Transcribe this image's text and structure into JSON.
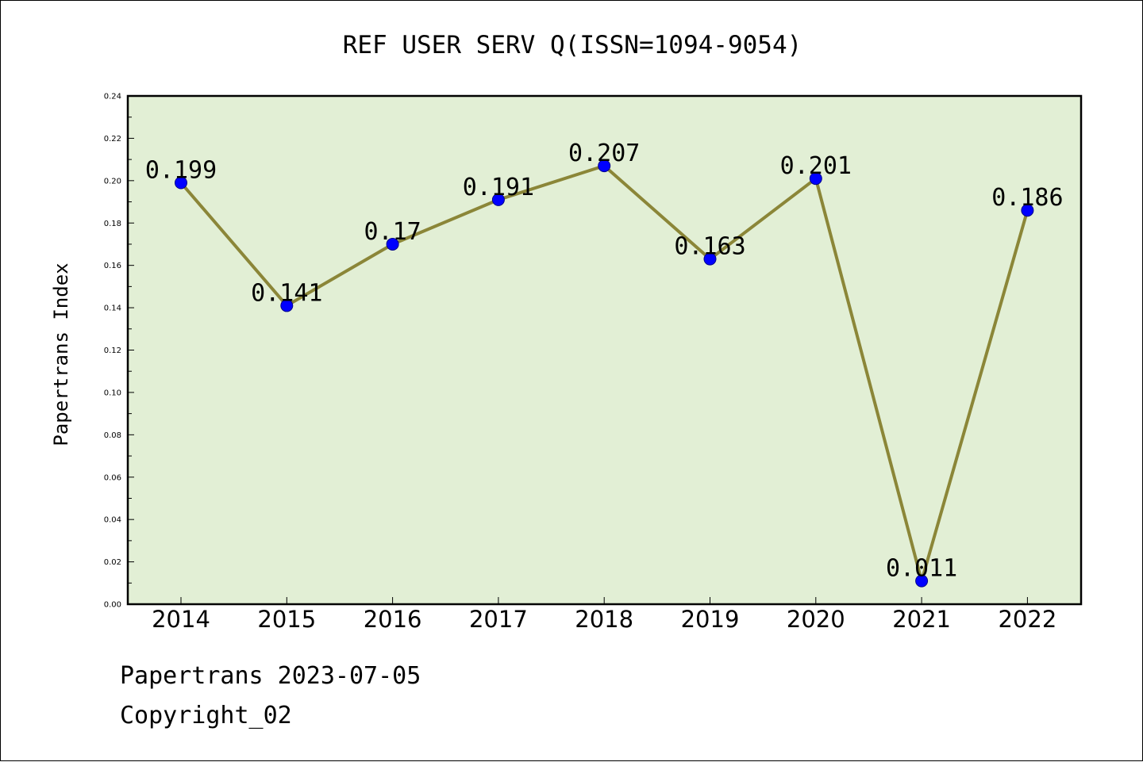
{
  "chart_data": {
    "type": "line",
    "title": "REF USER SERV Q(ISSN=1094-9054)",
    "xlabel": "",
    "ylabel": "Papertrans Index",
    "categories": [
      "2014",
      "2015",
      "2016",
      "2017",
      "2018",
      "2019",
      "2020",
      "2021",
      "2022"
    ],
    "series": [
      {
        "values": [
          0.199,
          0.141,
          0.17,
          0.191,
          0.207,
          0.163,
          0.201,
          0.011,
          0.186
        ],
        "labels": [
          "0.199",
          "0.141",
          "0.17",
          "0.191",
          "0.207",
          "0.163",
          "0.201",
          "0.011",
          "0.186"
        ]
      }
    ],
    "ylim": [
      0,
      0.24
    ],
    "yticks": [
      "0.00",
      "0.02",
      "0.04",
      "0.06",
      "0.08",
      "0.10",
      "0.12",
      "0.14",
      "0.16",
      "0.18",
      "0.20",
      "0.22",
      "0.24"
    ],
    "grid": false,
    "legend": "none",
    "colors": {
      "plot_background": "#e2efd5",
      "line": "#8b8638",
      "marker": "#0000ff"
    }
  },
  "footer": {
    "source": "Papertrans 2023-07-05",
    "copyright": "Copyright_02"
  }
}
